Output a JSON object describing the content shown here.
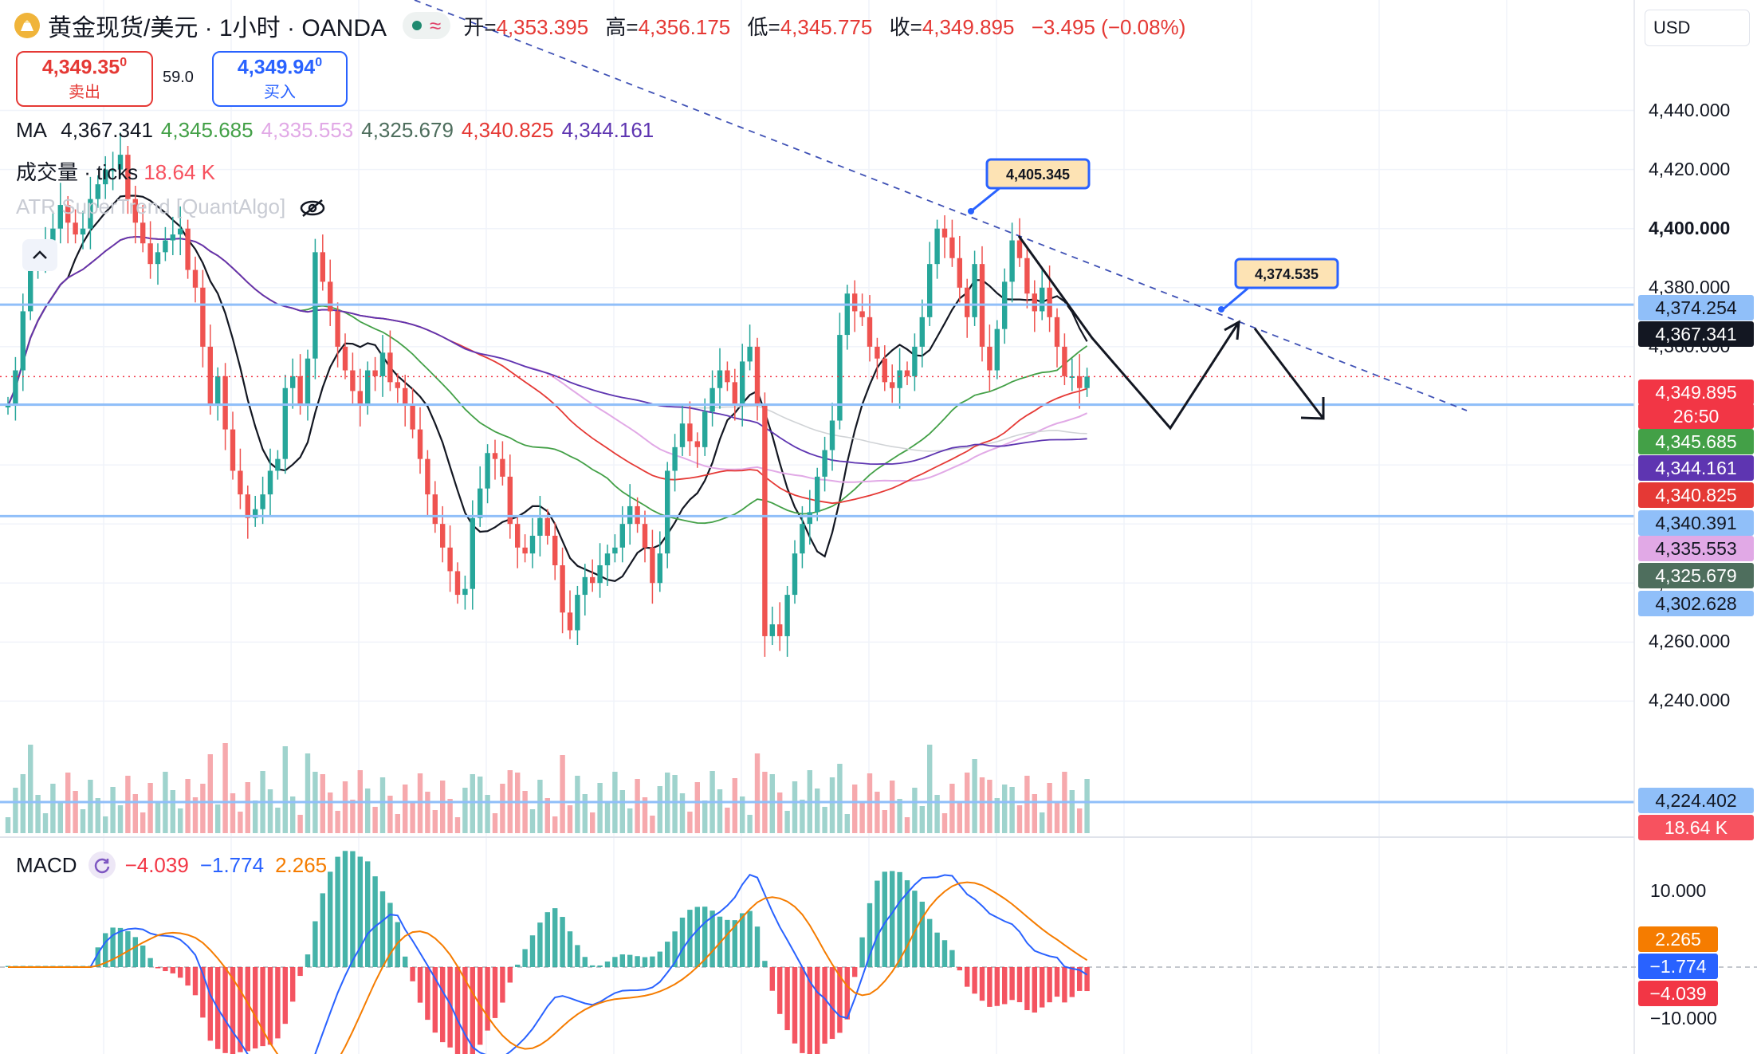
{
  "header": {
    "symbol_title": "黄金现货/美元 · 1小时 · OANDA",
    "ohlc": [
      {
        "label": "开=",
        "value": "4,353.395"
      },
      {
        "label": "高=",
        "value": "4,356.175"
      },
      {
        "label": "低=",
        "value": "4,345.775"
      },
      {
        "label": "收=",
        "value": "4,349.895"
      }
    ],
    "change": "−3.495 (−0.08%)"
  },
  "trade": {
    "sell_price": "4,349.35",
    "sell_sup": "0",
    "sell_label": "卖出",
    "spread": "59.0",
    "buy_price": "4,349.94",
    "buy_sup": "0",
    "buy_label": "买入"
  },
  "indicators": {
    "ma_label": "MA",
    "ma_values": [
      {
        "value": "4,367.341",
        "color": "#131722"
      },
      {
        "value": "4,345.685",
        "color": "#43a047"
      },
      {
        "value": "4,335.553",
        "color": "#e1a9e6"
      },
      {
        "value": "4,325.679",
        "color": "#4e6e5d"
      },
      {
        "value": "4,340.825",
        "color": "#e53935"
      },
      {
        "value": "4,344.161",
        "color": "#5e35b1"
      }
    ],
    "volume_label": "成交量 · ticks",
    "volume_value": "18.64 K",
    "atr_label": "ATR SuperTrend [QuantAlgo]"
  },
  "currency": "USD",
  "annotations": {
    "callout_high": "4,405.345",
    "callout_mid": "4,374.535"
  },
  "macd": {
    "label": "MACD",
    "hist": "−4.039",
    "macd": "−1.774",
    "signal": "2.265"
  },
  "price_axis": {
    "labels": [
      "4,440.000",
      "4,420.000",
      "4,400.000",
      "4,380.000",
      "4,360.000",
      "4,280.000",
      "4,260.000",
      "4,240.000"
    ],
    "tags": [
      {
        "text": "4,374.254",
        "color": "#90bff9",
        "textColor": "#131722"
      },
      {
        "text": "4,367.341",
        "color": "#131722",
        "textColor": "#ffffff"
      },
      {
        "text": "4,349.895",
        "color": "#f23645",
        "textColor": "#ffffff"
      },
      {
        "text": "26:50",
        "color": "#f23645",
        "textColor": "#ffffff"
      },
      {
        "text": "4,345.685",
        "color": "#43a047",
        "textColor": "#ffffff"
      },
      {
        "text": "4,344.161",
        "color": "#5e35b1",
        "textColor": "#ffffff"
      },
      {
        "text": "4,340.825",
        "color": "#e53935",
        "textColor": "#ffffff"
      },
      {
        "text": "4,340.391",
        "color": "#90bff9",
        "textColor": "#131722"
      },
      {
        "text": "4,335.553",
        "color": "#e1a9e6",
        "textColor": "#131722"
      },
      {
        "text": "4,325.679",
        "color": "#4e6e5d",
        "textColor": "#ffffff"
      },
      {
        "text": "4,302.628",
        "color": "#90bff9",
        "textColor": "#131722"
      },
      {
        "text": "4,224.402",
        "color": "#90bff9",
        "textColor": "#131722"
      },
      {
        "text": "18.64 K",
        "color": "#f7525f",
        "textColor": "#ffffff"
      }
    ],
    "macd_labels": [
      "10.000",
      "−10.000"
    ],
    "macd_tags": [
      {
        "text": "2.265",
        "color": "#f57c00",
        "textColor": "#ffffff"
      },
      {
        "text": "−1.774",
        "color": "#2962ff",
        "textColor": "#ffffff"
      },
      {
        "text": "−4.039",
        "color": "#f23645",
        "textColor": "#ffffff"
      }
    ]
  },
  "chart_data": {
    "type": "line",
    "instrument": "XAU/USD",
    "timeframe": "1小时",
    "price_range": [
      4225,
      4445
    ],
    "support_resistance": [
      4374.254,
      4340.391,
      4302.628,
      4224.402
    ],
    "last_price": 4349.895,
    "close_series": [
      4340,
      4352,
      4372,
      4388,
      4392,
      4396,
      4400,
      4408,
      4402,
      4398,
      4400,
      4410,
      4415,
      4420,
      4420,
      4425,
      4410,
      4402,
      4395,
      4388,
      4392,
      4396,
      4398,
      4400,
      4386,
      4380,
      4360,
      4340,
      4350,
      4332,
      4318,
      4310,
      4302,
      4305,
      4310,
      4318,
      4322,
      4346,
      4350,
      4340,
      4356,
      4392,
      4382,
      4372,
      4360,
      4352,
      4345,
      4340,
      4352,
      4350,
      4358,
      4348,
      4346,
      4340,
      4332,
      4322,
      4310,
      4300,
      4292,
      4284,
      4276,
      4278,
      4302,
      4312,
      4324,
      4322,
      4316,
      4300,
      4292,
      4290,
      4296,
      4302,
      4296,
      4286,
      4270,
      4264,
      4276,
      4282,
      4280,
      4286,
      4290,
      4292,
      4300,
      4306,
      4300,
      4292,
      4280,
      4290,
      4318,
      4326,
      4334,
      4328,
      4326,
      4338,
      4346,
      4352,
      4348,
      4340,
      4355,
      4360,
      4340,
      4262,
      4266,
      4262,
      4276,
      4290,
      4300,
      4304,
      4316,
      4325,
      4335,
      4364,
      4378,
      4372,
      4370,
      4360,
      4356,
      4348,
      4346,
      4352,
      4350,
      4360,
      4370,
      4388,
      4400,
      4397,
      4390,
      4380,
      4370,
      4388,
      4360,
      4352,
      4366,
      4382,
      4396,
      4390,
      4378,
      4372,
      4380,
      4370,
      4360,
      4350,
      4350,
      4346,
      4349.895
    ]
  }
}
